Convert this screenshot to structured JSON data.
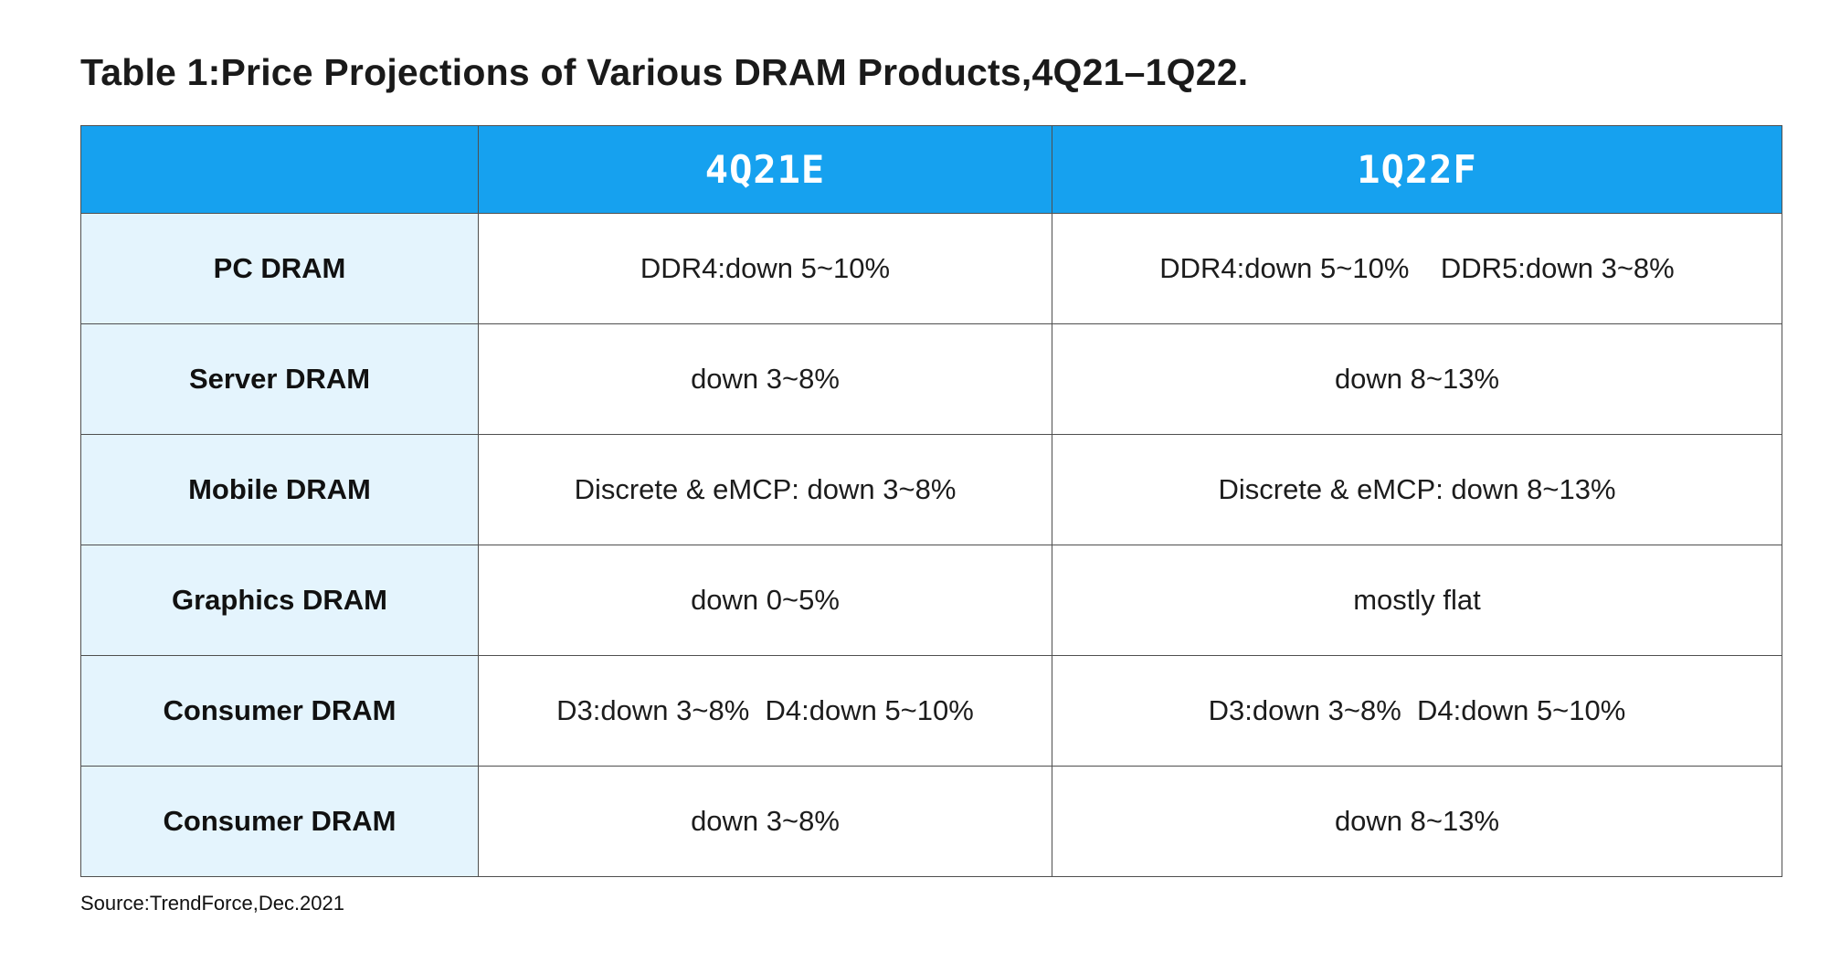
{
  "title": "Table 1:Price Projections of Various DRAM Products,4Q21–1Q22.",
  "source": "Source:TrendForce,Dec.2021",
  "colors": {
    "header_bg": "#16a1ef",
    "row_label_bg": "#e4f4fd",
    "border": "#4f4f4f",
    "header_text": "#ffffff"
  },
  "chart_data": {
    "type": "table",
    "title": "Price Projections of Various DRAM Products, 4Q21–1Q22",
    "columns": [
      "",
      "4Q21E",
      "1Q22F"
    ],
    "rows": [
      {
        "label": "PC DRAM",
        "q4": "DDR4:down 5~10%",
        "q1": "DDR4:down 5~10%    DDR5:down 3~8%"
      },
      {
        "label": "Server DRAM",
        "q4": "down 3~8%",
        "q1": "down 8~13%"
      },
      {
        "label": "Mobile DRAM",
        "q4": "Discrete & eMCP: down 3~8%",
        "q1": "Discrete & eMCP: down 8~13%"
      },
      {
        "label": "Graphics DRAM",
        "q4": "down 0~5%",
        "q1": "mostly flat"
      },
      {
        "label": "Consumer DRAM",
        "q4": "D3:down 3~8%  D4:down 5~10%",
        "q1": "D3:down 3~8%  D4:down 5~10%"
      },
      {
        "label": "Consumer DRAM",
        "q4": "down 3~8%",
        "q1": "down 8~13%"
      }
    ]
  }
}
